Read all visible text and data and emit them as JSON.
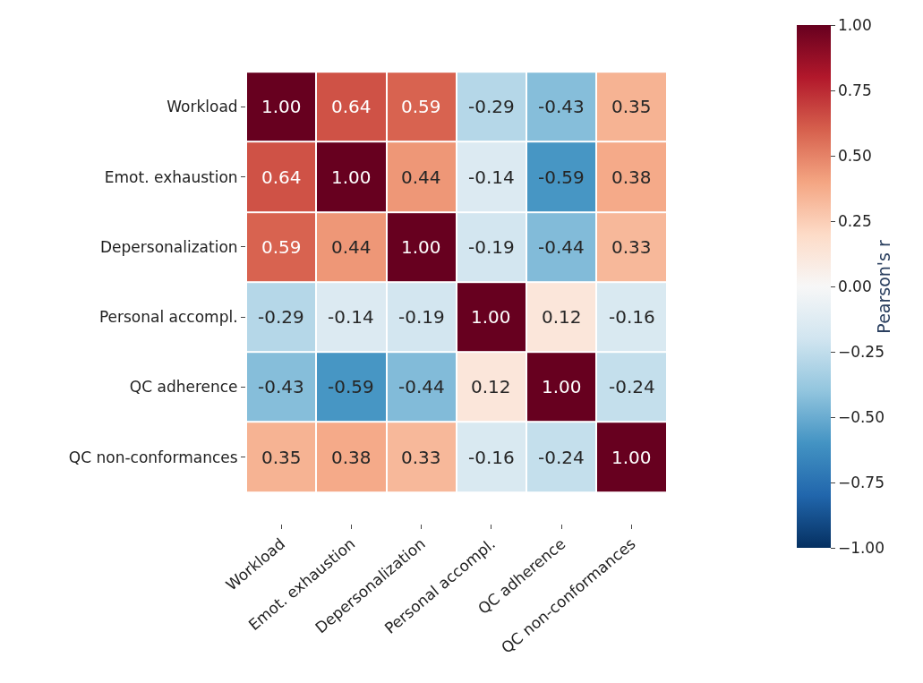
{
  "chart_data": {
    "type": "heatmap",
    "categories": [
      "Workload",
      "Emot. exhaustion",
      "Depersonalization",
      "Personal accompl.",
      "QC adherence",
      "QC non-conformances"
    ],
    "y_categories": [
      "Workload",
      "Emot. exhaustion",
      "Depersonalization",
      "Personal accompl.",
      "QC adherence",
      "QC non-conformances"
    ],
    "cells": [
      [
        1.0,
        0.64,
        0.59,
        -0.29,
        -0.43,
        0.35
      ],
      [
        0.64,
        1.0,
        0.44,
        -0.14,
        -0.59,
        0.38
      ],
      [
        0.59,
        0.44,
        1.0,
        -0.19,
        -0.44,
        0.33
      ],
      [
        -0.29,
        -0.14,
        -0.19,
        1.0,
        0.12,
        -0.16
      ],
      [
        -0.43,
        -0.59,
        -0.44,
        0.12,
        1.0,
        -0.24
      ],
      [
        0.35,
        0.38,
        0.33,
        -0.16,
        -0.24,
        1.0
      ]
    ],
    "cell_labels": [
      [
        "1.00",
        "0.64",
        "0.59",
        "-0.29",
        "-0.43",
        "0.35"
      ],
      [
        "0.64",
        "1.00",
        "0.44",
        "-0.14",
        "-0.59",
        "0.38"
      ],
      [
        "0.59",
        "0.44",
        "1.00",
        "-0.19",
        "-0.44",
        "0.33"
      ],
      [
        "-0.29",
        "-0.14",
        "-0.19",
        "1.00",
        "0.12",
        "-0.16"
      ],
      [
        "-0.43",
        "-0.59",
        "-0.44",
        "0.12",
        "1.00",
        "-0.24"
      ],
      [
        "0.35",
        "0.38",
        "0.33",
        "-0.16",
        "-0.24",
        "1.00"
      ]
    ],
    "clabel": "Pearson's r",
    "clim": [
      -1,
      1
    ],
    "cticks": [
      {
        "value": -1,
        "label": "−1.00"
      },
      {
        "value": -0.75,
        "label": "−0.75"
      },
      {
        "value": -0.5,
        "label": "−0.50"
      },
      {
        "value": -0.25,
        "label": "−0.25"
      },
      {
        "value": 0,
        "label": "0.00"
      },
      {
        "value": 0.25,
        "label": "0.25"
      },
      {
        "value": 0.5,
        "label": "0.50"
      },
      {
        "value": 0.75,
        "label": "0.75"
      },
      {
        "value": 1,
        "label": "1.00"
      }
    ]
  }
}
